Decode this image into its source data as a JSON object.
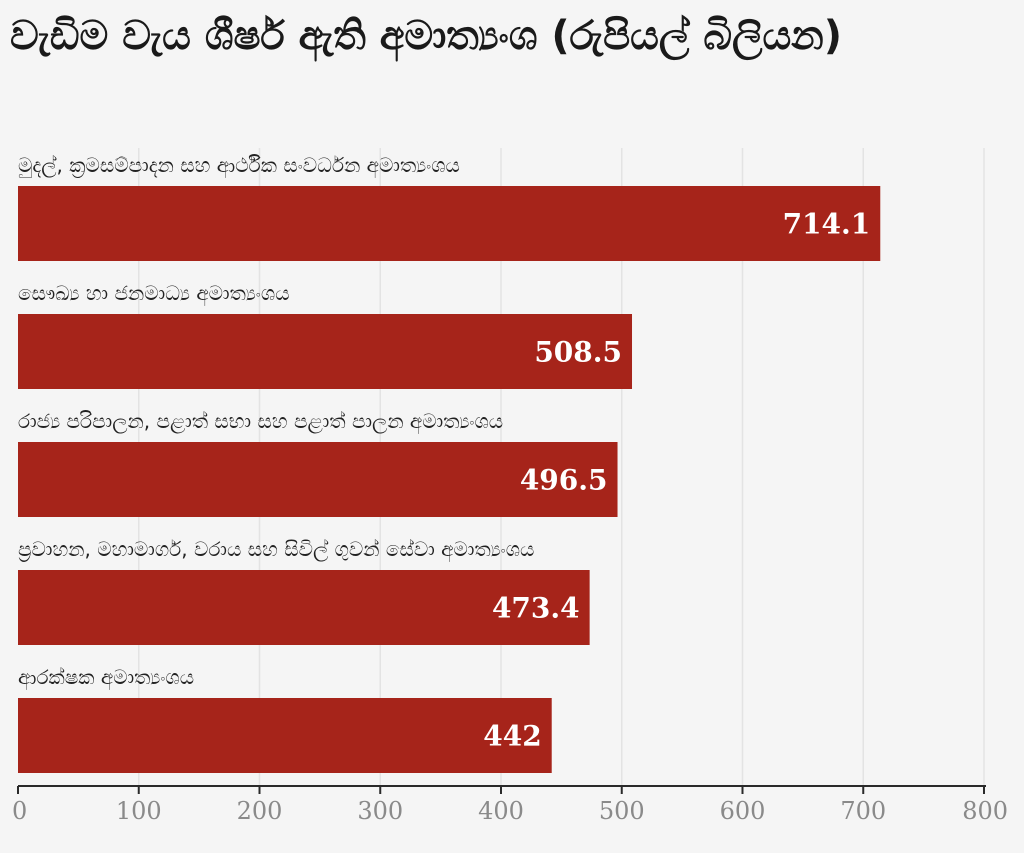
{
  "chart_data": {
    "type": "bar",
    "orientation": "horizontal",
    "title": "වැඩිම වැය ශීර්ෂ ඇති අමාත්‍යංශ (රුපියල් බිලියන)",
    "categories": [
      "මුදල්, ක්‍රමසම්පාදන සහ ආර්ථික සංවර්ධන අමාත්‍යංශය",
      "සෞඛ්‍ය හා ජනමාධ්‍ය අමාත්‍යංශය",
      "රාජ්‍ය පරිපාලන, පළාත් සභා සහ පළාත් පාලන අමාත්‍යංශය",
      "ප්‍රවාහන, මහාමාර්ග, වරාය සහ සිවිල් ගුවන් සේවා අමාත්‍යංශය",
      "ආරක්ෂක අමාත්‍යංශය"
    ],
    "values": [
      714.1,
      508.5,
      496.5,
      473.4,
      442
    ],
    "value_labels": [
      "714.1",
      "508.5",
      "496.5",
      "473.4",
      "442"
    ],
    "xlim": [
      0,
      800
    ],
    "xticks": [
      "0",
      "100",
      "200",
      "300",
      "400",
      "500",
      "600",
      "700",
      "800"
    ],
    "grid": true,
    "bar_color": "#a6241a"
  }
}
